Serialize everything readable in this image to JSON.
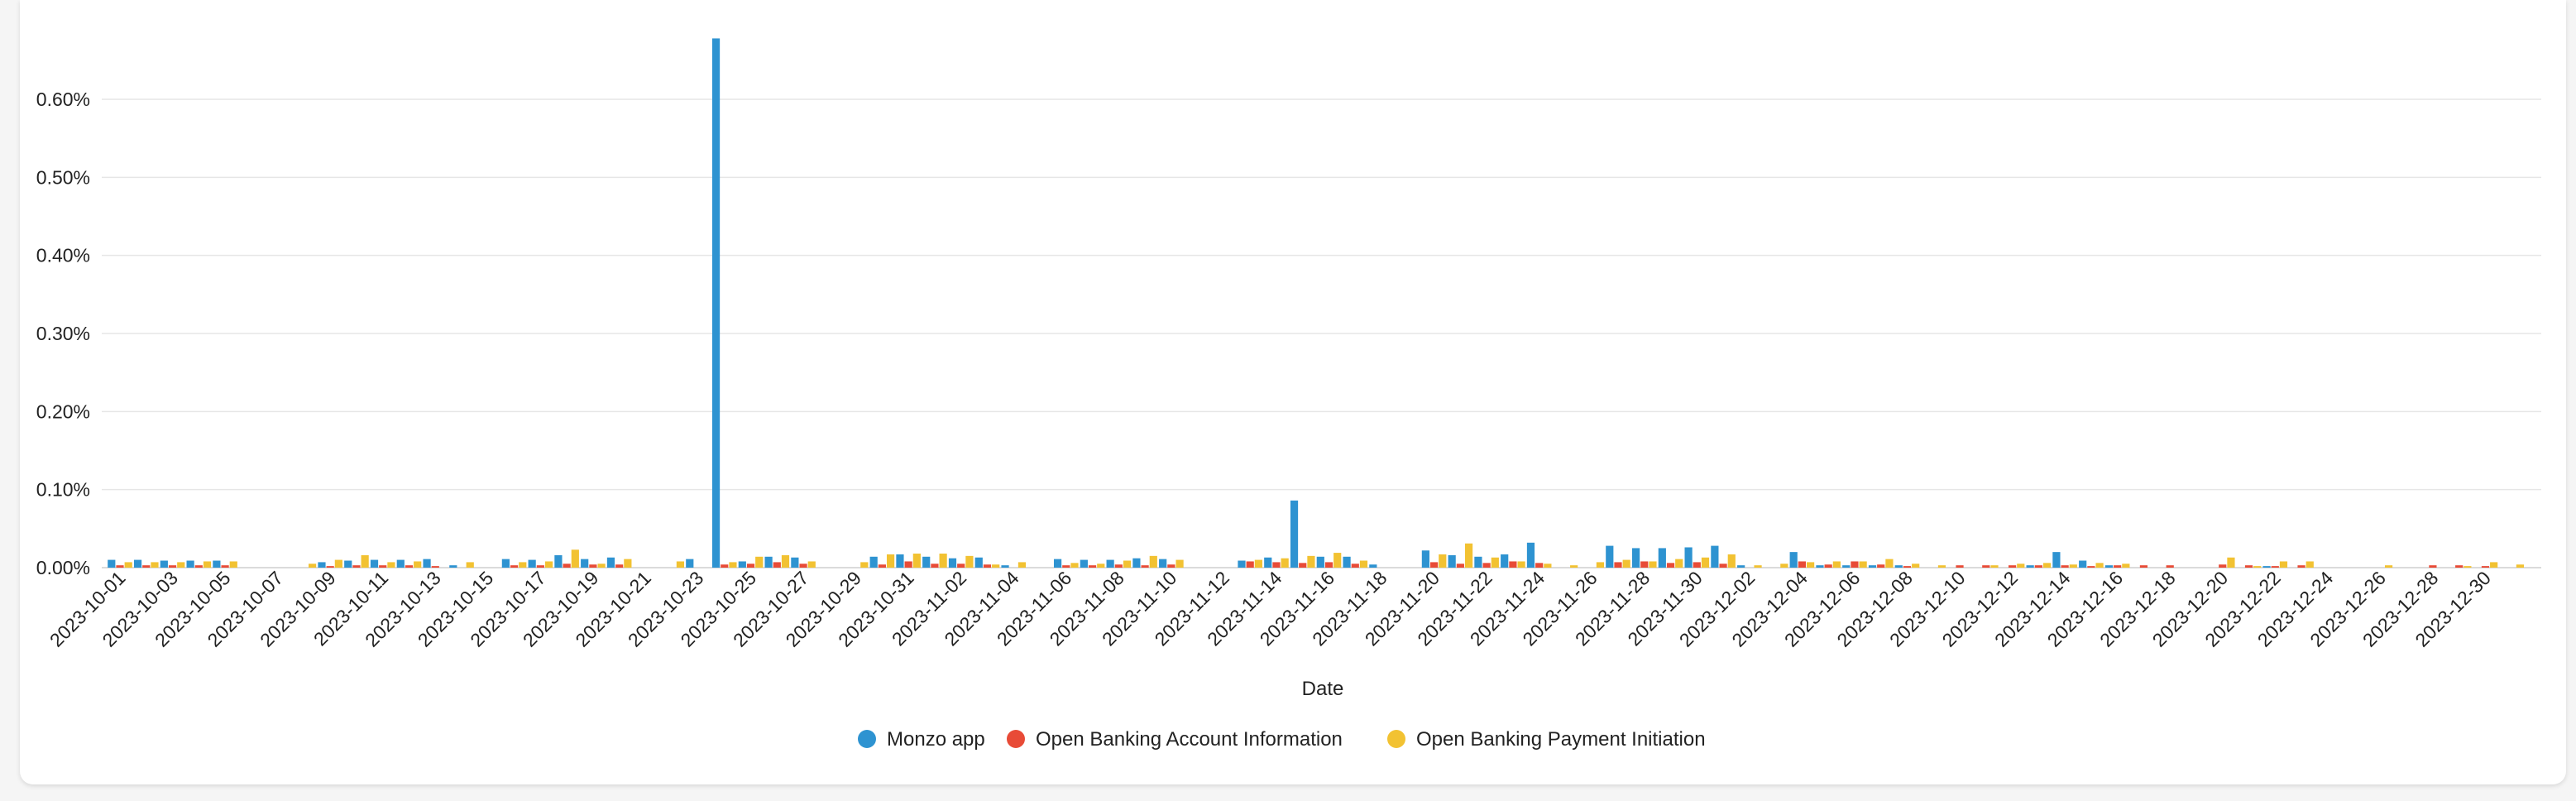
{
  "chart_data": {
    "type": "bar",
    "title": "",
    "xlabel": "Date",
    "ylabel": "",
    "ylim": [
      0,
      0.7
    ],
    "y_ticks": [
      "0.00%",
      "0.10%",
      "0.20%",
      "0.30%",
      "0.40%",
      "0.50%",
      "0.60%"
    ],
    "y_tick_values": [
      0,
      0.1,
      0.2,
      0.3,
      0.4,
      0.5,
      0.6
    ],
    "grid": true,
    "legend_position": "bottom-center",
    "categories": [
      "2023-10-01",
      "2023-10-02",
      "2023-10-03",
      "2023-10-04",
      "2023-10-05",
      "2023-10-06",
      "2023-10-07",
      "2023-10-08",
      "2023-10-09",
      "2023-10-10",
      "2023-10-11",
      "2023-10-12",
      "2023-10-13",
      "2023-10-14",
      "2023-10-15",
      "2023-10-16",
      "2023-10-17",
      "2023-10-18",
      "2023-10-19",
      "2023-10-20",
      "2023-10-21",
      "2023-10-22",
      "2023-10-23",
      "2023-10-24",
      "2023-10-25",
      "2023-10-26",
      "2023-10-27",
      "2023-10-28",
      "2023-10-29",
      "2023-10-30",
      "2023-10-31",
      "2023-11-01",
      "2023-11-02",
      "2023-11-03",
      "2023-11-04",
      "2023-11-05",
      "2023-11-06",
      "2023-11-07",
      "2023-11-08",
      "2023-11-09",
      "2023-11-10",
      "2023-11-11",
      "2023-11-12",
      "2023-11-13",
      "2023-11-14",
      "2023-11-15",
      "2023-11-16",
      "2023-11-17",
      "2023-11-18",
      "2023-11-19",
      "2023-11-20",
      "2023-11-21",
      "2023-11-22",
      "2023-11-23",
      "2023-11-24",
      "2023-11-25",
      "2023-11-26",
      "2023-11-27",
      "2023-11-28",
      "2023-11-29",
      "2023-11-30",
      "2023-12-01",
      "2023-12-02",
      "2023-12-03",
      "2023-12-04",
      "2023-12-05",
      "2023-12-06",
      "2023-12-07",
      "2023-12-08",
      "2023-12-09",
      "2023-12-10",
      "2023-12-11",
      "2023-12-12",
      "2023-12-13",
      "2023-12-14",
      "2023-12-15",
      "2023-12-16",
      "2023-12-17",
      "2023-12-18",
      "2023-12-19",
      "2023-12-20",
      "2023-12-21",
      "2023-12-22",
      "2023-12-23",
      "2023-12-24",
      "2023-12-25",
      "2023-12-26",
      "2023-12-27",
      "2023-12-28",
      "2023-12-29",
      "2023-12-30",
      "2023-12-31"
    ],
    "x_tick_labels": [
      "2023-10-01",
      "2023-10-03",
      "2023-10-05",
      "2023-10-07",
      "2023-10-09",
      "2023-10-11",
      "2023-10-13",
      "2023-10-15",
      "2023-10-17",
      "2023-10-19",
      "2023-10-21",
      "2023-10-23",
      "2023-10-25",
      "2023-10-27",
      "2023-10-29",
      "2023-10-31",
      "2023-11-02",
      "2023-11-04",
      "2023-11-06",
      "2023-11-08",
      "2023-11-10",
      "2023-11-12",
      "2023-11-14",
      "2023-11-16",
      "2023-11-18",
      "2023-11-20",
      "2023-11-22",
      "2023-11-24",
      "2023-11-26",
      "2023-11-28",
      "2023-11-30",
      "2023-12-02",
      "2023-12-04",
      "2023-12-06",
      "2023-12-08",
      "2023-12-10",
      "2023-12-12",
      "2023-12-14",
      "2023-12-16",
      "2023-12-18",
      "2023-12-20",
      "2023-12-22",
      "2023-12-24",
      "2023-12-26",
      "2023-12-28",
      "2023-12-30"
    ],
    "series": [
      {
        "name": "Monzo app",
        "color": "#2E93D1",
        "values": [
          0.01,
          0.01,
          0.009,
          0.009,
          0.009,
          0,
          0,
          0,
          0.007,
          0.009,
          0.01,
          0.01,
          0.011,
          0.003,
          0,
          0.011,
          0.01,
          0.016,
          0.011,
          0.013,
          0,
          0,
          0.011,
          0.678,
          0.008,
          0.014,
          0.013,
          0,
          0,
          0.014,
          0.017,
          0.014,
          0.012,
          0.013,
          0.003,
          0,
          0.011,
          0.01,
          0.01,
          0.012,
          0.011,
          0,
          0,
          0.009,
          0.013,
          0.086,
          0.014,
          0.014,
          0.004,
          0,
          0.022,
          0.016,
          0.014,
          0.017,
          0.032,
          0,
          0,
          0.028,
          0.025,
          0.025,
          0.026,
          0.028,
          0.003,
          0,
          0.02,
          0.003,
          0.003,
          0.003,
          0.003,
          0,
          0,
          0,
          0,
          0.003,
          0.02,
          0.009,
          0.003,
          0,
          0,
          0,
          0,
          0,
          0.002,
          0,
          0,
          0,
          0,
          0,
          0,
          0,
          0,
          0
        ]
      },
      {
        "name": "Open Banking Account Information",
        "color": "#E84B37",
        "values": [
          0.003,
          0.003,
          0.003,
          0.003,
          0.003,
          0,
          0,
          0,
          0.002,
          0.003,
          0.003,
          0.003,
          0.002,
          0,
          0,
          0.003,
          0.003,
          0.005,
          0.004,
          0.004,
          0,
          0,
          0,
          0.004,
          0.005,
          0.007,
          0.005,
          0,
          0,
          0.004,
          0.008,
          0.005,
          0.005,
          0.004,
          0,
          0,
          0.003,
          0.003,
          0.004,
          0.003,
          0.004,
          0,
          0,
          0.008,
          0.007,
          0.006,
          0.007,
          0.005,
          0,
          0,
          0.007,
          0.005,
          0.006,
          0.008,
          0.006,
          0,
          0,
          0.007,
          0.008,
          0.006,
          0.007,
          0.005,
          0,
          0,
          0.008,
          0.004,
          0.008,
          0.004,
          0.002,
          0,
          0.003,
          0.003,
          0.003,
          0.003,
          0.003,
          0.002,
          0.003,
          0.003,
          0.003,
          0,
          0.004,
          0.003,
          0.002,
          0.003,
          0,
          0,
          0,
          0,
          0.003,
          0.003,
          0.002,
          0
        ]
      },
      {
        "name": "Open Banking Payment Initiation",
        "color": "#F2C232",
        "values": [
          0.007,
          0.007,
          0.007,
          0.008,
          0.008,
          0,
          0,
          0.005,
          0.01,
          0.016,
          0.007,
          0.008,
          0,
          0.007,
          0,
          0.007,
          0.008,
          0.023,
          0.005,
          0.011,
          0,
          0.008,
          0,
          0.007,
          0.014,
          0.016,
          0.008,
          0,
          0.007,
          0.017,
          0.018,
          0.018,
          0.015,
          0.004,
          0.007,
          0,
          0.006,
          0.005,
          0.009,
          0.015,
          0.01,
          0,
          0,
          0.01,
          0.012,
          0.015,
          0.019,
          0.009,
          0,
          0,
          0.017,
          0.031,
          0.013,
          0.008,
          0.005,
          0.003,
          0.007,
          0.01,
          0.008,
          0.011,
          0.013,
          0.017,
          0.003,
          0.005,
          0.007,
          0.008,
          0.008,
          0.011,
          0.005,
          0.003,
          0,
          0.003,
          0.005,
          0.006,
          0.004,
          0.006,
          0.005,
          0,
          0,
          0,
          0.013,
          0.002,
          0.008,
          0.008,
          0,
          0,
          0.003,
          0,
          0,
          0.002,
          0.007,
          0.004
        ]
      }
    ]
  }
}
